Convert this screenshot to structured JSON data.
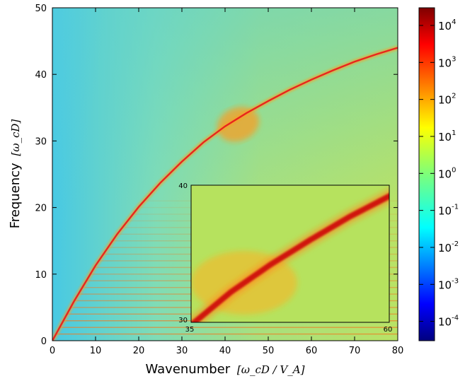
{
  "chart_data": {
    "type": "heatmap",
    "title": "",
    "xlabel": "Wavenumber",
    "xlabel_unit": "[ω_cD / V_A]",
    "ylabel": "Frequency",
    "ylabel_unit": "[ω_cD]",
    "xlim": [
      0,
      80
    ],
    "ylim": [
      0,
      50
    ],
    "x_ticks": [
      "0",
      "10",
      "20",
      "30",
      "40",
      "50",
      "60",
      "70",
      "80"
    ],
    "y_ticks": [
      "0",
      "10",
      "20",
      "30",
      "40",
      "50"
    ],
    "colorbar": {
      "scale": "log",
      "range": [
        3e-05,
        30000
      ],
      "tick_base": "10",
      "tick_exponents": [
        "4",
        "3",
        "2",
        "1",
        "0",
        "-1",
        "-2",
        "-3",
        "-4"
      ],
      "colormap": "jet"
    },
    "features": {
      "main_branch": {
        "x": [
          0,
          5,
          10,
          15,
          20,
          25,
          30,
          35,
          40,
          45,
          50,
          55,
          60,
          65,
          70,
          75,
          80
        ],
        "y": [
          0,
          5.9,
          11.3,
          16,
          20.1,
          23.7,
          26.9,
          29.8,
          32.2,
          34.2,
          36,
          37.7,
          39.2,
          40.6,
          41.9,
          43,
          44
        ],
        "enhanced_region": {
          "x": [
            38,
            48
          ],
          "y": [
            30,
            35
          ]
        }
      },
      "harmonic_lines": {
        "y": [
          1,
          2,
          3,
          4,
          5,
          6,
          7,
          8,
          9,
          10,
          11,
          12,
          13,
          14,
          15,
          16,
          17,
          18,
          19,
          20,
          21
        ]
      }
    },
    "inset": {
      "xlim": [
        35,
        60
      ],
      "ylim": [
        30,
        40
      ],
      "x_ticks": [
        "35",
        "60"
      ],
      "y_ticks": [
        "30",
        "40"
      ]
    }
  }
}
